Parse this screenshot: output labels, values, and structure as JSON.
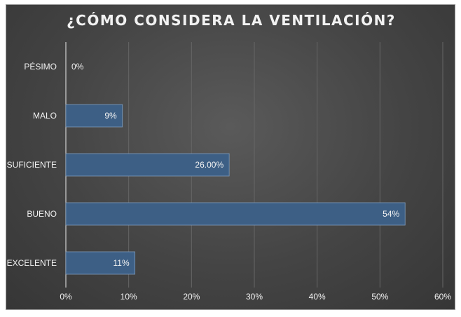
{
  "chart_data": {
    "type": "bar",
    "orientation": "horizontal",
    "title": "¿CÓMO CONSIDERA LA VENTILACIÓN?",
    "categories": [
      "PÉSIMO",
      "MALO",
      "SUFICIENTE",
      "BUENO",
      "EXCELENTE"
    ],
    "values": [
      0,
      9,
      26,
      54,
      11
    ],
    "data_labels": [
      "0%",
      "9%",
      "26.00%",
      "54%",
      "11%"
    ],
    "xlim": [
      0,
      60
    ],
    "x_ticks": [
      "0%",
      "10%",
      "20%",
      "30%",
      "40%",
      "50%",
      "60%"
    ],
    "grid": true,
    "colors": {
      "bar": "#3d5f85",
      "bar_border": "#7f9cbc",
      "background": "#474747",
      "text": "#f2f2f2",
      "grid": "#666666"
    }
  }
}
